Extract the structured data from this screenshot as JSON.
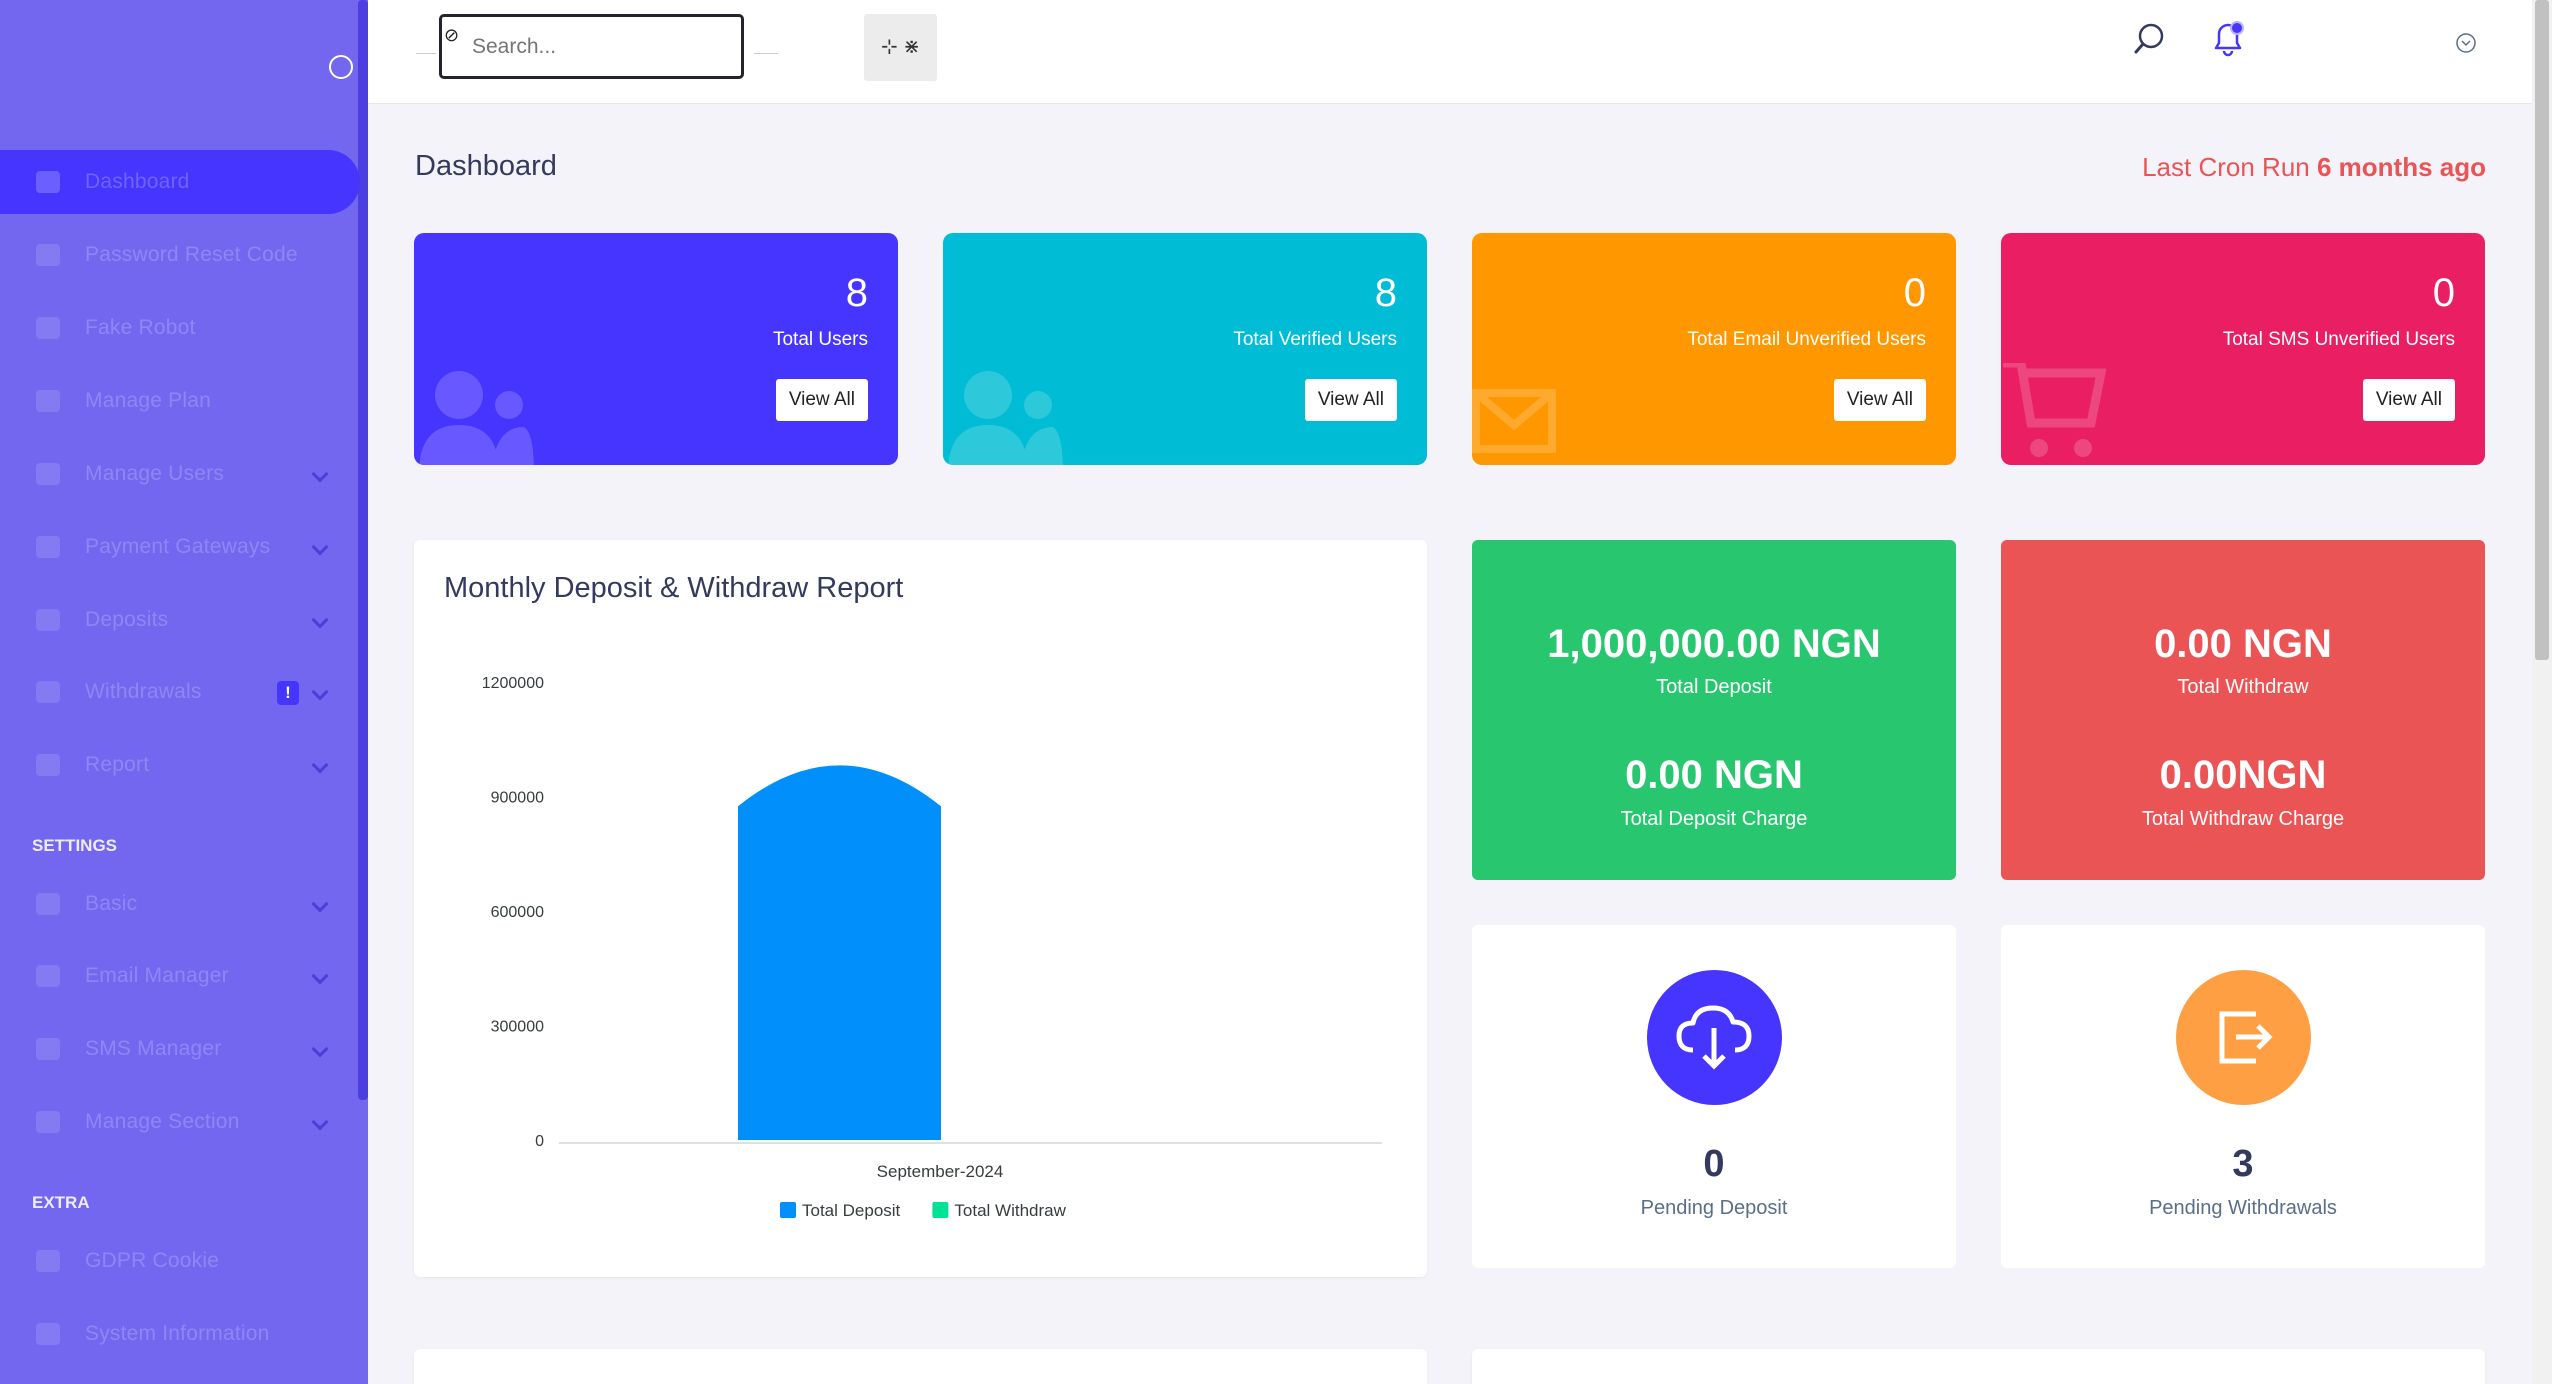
{
  "sidebar": {
    "items": [
      {
        "label": "Dashboard"
      },
      {
        "label": "Password Reset Code"
      },
      {
        "label": "Fake Robot"
      },
      {
        "label": "Manage Plan"
      },
      {
        "label": "Manage Users"
      },
      {
        "label": "Payment Gateways"
      },
      {
        "label": "Deposits"
      },
      {
        "label": "Withdrawals",
        "badge": "!"
      },
      {
        "label": "Report"
      },
      {
        "label": "Basic"
      },
      {
        "label": "Email Manager"
      },
      {
        "label": "SMS Manager"
      },
      {
        "label": "Manage Section"
      },
      {
        "label": "GDPR Cookie"
      },
      {
        "label": "System Information"
      }
    ],
    "sections": {
      "settings": "SETTINGS",
      "extra": "EXTRA"
    }
  },
  "topbar": {
    "search_placeholder": "Search..."
  },
  "page": {
    "title": "Dashboard",
    "cron_prefix": "Last Cron Run",
    "cron_value": "6 months ago"
  },
  "stats": [
    {
      "value": "8",
      "label": "Total Users",
      "button": "View All",
      "color": "#4634ff"
    },
    {
      "value": "8",
      "label": "Total Verified Users",
      "button": "View All",
      "color": "#00bcd4"
    },
    {
      "value": "0",
      "label": "Total Email Unverified Users",
      "button": "View All",
      "color": "#ff9800"
    },
    {
      "value": "0",
      "label": "Total SMS Unverified Users",
      "button": "View All",
      "color": "#e91e63"
    }
  ],
  "summary": {
    "deposit": {
      "total": "1,000,000.00 NGN",
      "total_label": "Total Deposit",
      "charge": "0.00 NGN",
      "charge_label": "Total Deposit Charge",
      "color": "#28c76f"
    },
    "withdraw": {
      "total": "0.00 NGN",
      "total_label": "Total Withdraw",
      "charge": "0.00NGN",
      "charge_label": "Total Withdraw Charge",
      "color": "#ea5455"
    }
  },
  "pending": {
    "deposit": {
      "value": "0",
      "label": "Pending Deposit",
      "color": "#4634ff"
    },
    "withdraw": {
      "value": "3",
      "label": "Pending Withdrawals",
      "color": "#ff9f43"
    }
  },
  "chart_data": {
    "type": "bar",
    "title": "Monthly Deposit & Withdraw Report",
    "categories": [
      "September-2024"
    ],
    "series": [
      {
        "name": "Total Deposit",
        "values": [
          1000000
        ],
        "color": "#008ffb"
      },
      {
        "name": "Total Withdraw",
        "values": [
          0
        ],
        "color": "#00e396"
      }
    ],
    "ylim": [
      0,
      1200000
    ],
    "yticks": [
      "1200000",
      "900000",
      "600000",
      "300000",
      "0"
    ],
    "legend": "bottom"
  }
}
